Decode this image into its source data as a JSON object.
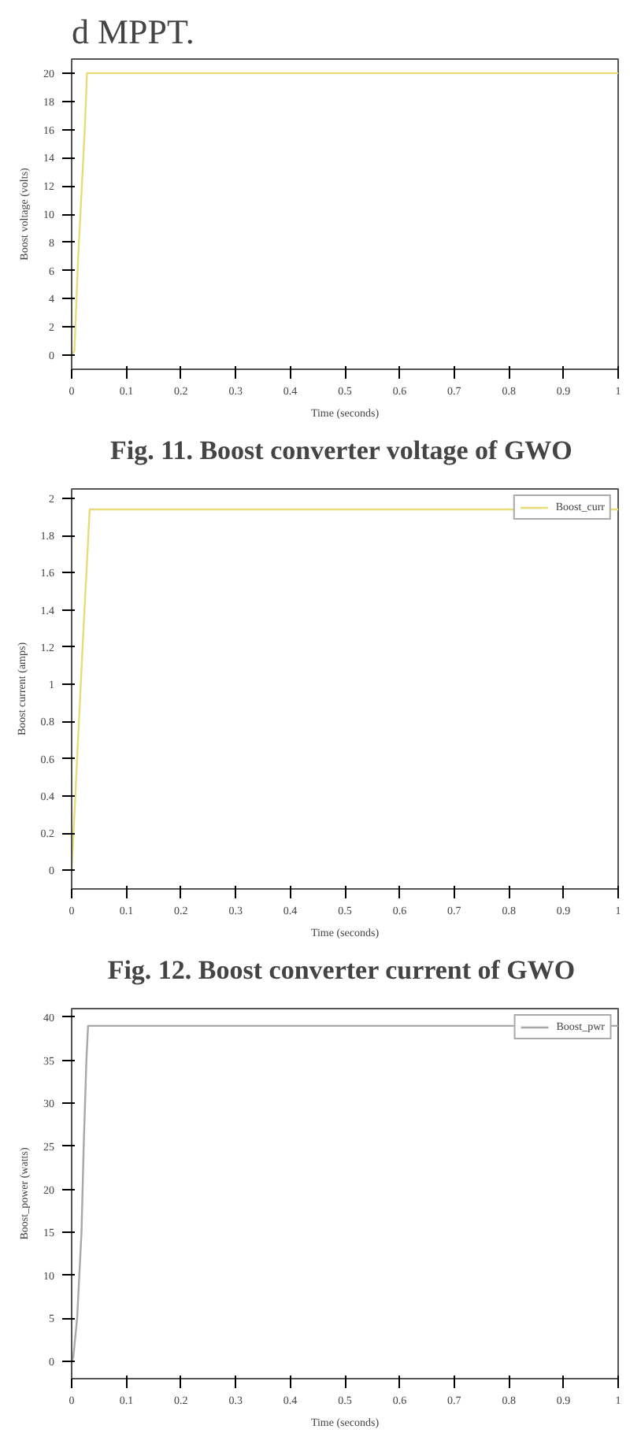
{
  "chart_data": [
    {
      "type": "line",
      "title": "d MPPT.",
      "xlabel": "Time (seconds)",
      "ylabel": "Boost voltage (volts)",
      "annotations": [
        "Fig. 11.  Boost converter voltage of GWO"
      ],
      "x": [
        0,
        0.005,
        0.012,
        0.024,
        0.028,
        1
      ],
      "series": [
        {
          "color": "#e6dc78",
          "values": [
            0,
            0.3,
            7,
            16,
            20,
            20
          ]
        }
      ],
      "xlim": [
        0,
        1
      ],
      "xticks": [
        0,
        0.1,
        0.2,
        0.3,
        0.4,
        0.5,
        0.6,
        0.7,
        0.8,
        0.9,
        1
      ],
      "ylim": [
        -1,
        21
      ],
      "yticks": [
        0,
        2,
        4,
        6,
        8,
        10,
        12,
        14,
        16,
        18,
        20
      ],
      "grid": false,
      "legend": false
    },
    {
      "type": "line",
      "xlabel": "Time (seconds)",
      "ylabel": "Boost current (amps)",
      "annotations": [
        "Fig. 12.  Boost converter current of GWO"
      ],
      "x": [
        0,
        0.01,
        0.02,
        0.033,
        1
      ],
      "series": [
        {
          "name": "Boost_curr",
          "color": "#e6dc78",
          "values": [
            0,
            0.6,
            1.2,
            1.94,
            1.94
          ]
        }
      ],
      "xlim": [
        0,
        1
      ],
      "xticks": [
        0,
        0.1,
        0.2,
        0.3,
        0.4,
        0.5,
        0.6,
        0.7,
        0.8,
        0.9,
        1
      ],
      "ylim": [
        -0.1,
        2.05
      ],
      "yticks": [
        0,
        0.2,
        0.4,
        0.6,
        0.8,
        1,
        1.2,
        1.4,
        1.6,
        1.8,
        2
      ],
      "grid": false,
      "legend": "top right"
    },
    {
      "type": "line",
      "xlabel": "Time (seconds)",
      "ylabel": "Boost_power (watts)",
      "x": [
        0,
        0.003,
        0.01,
        0.018,
        0.022,
        0.027,
        0.03,
        1
      ],
      "series": [
        {
          "name": "Boost_pwr",
          "color": "#a8a8a8",
          "values": [
            0,
            0.5,
            5,
            15,
            25,
            35,
            39,
            39
          ]
        }
      ],
      "xlim": [
        0,
        1
      ],
      "xticks": [
        0,
        0.1,
        0.2,
        0.3,
        0.4,
        0.5,
        0.6,
        0.7,
        0.8,
        0.9,
        1
      ],
      "ylim": [
        -2,
        41
      ],
      "yticks": [
        0,
        5,
        10,
        15,
        20,
        25,
        30,
        35,
        40
      ],
      "grid": false,
      "legend": "top right"
    }
  ]
}
